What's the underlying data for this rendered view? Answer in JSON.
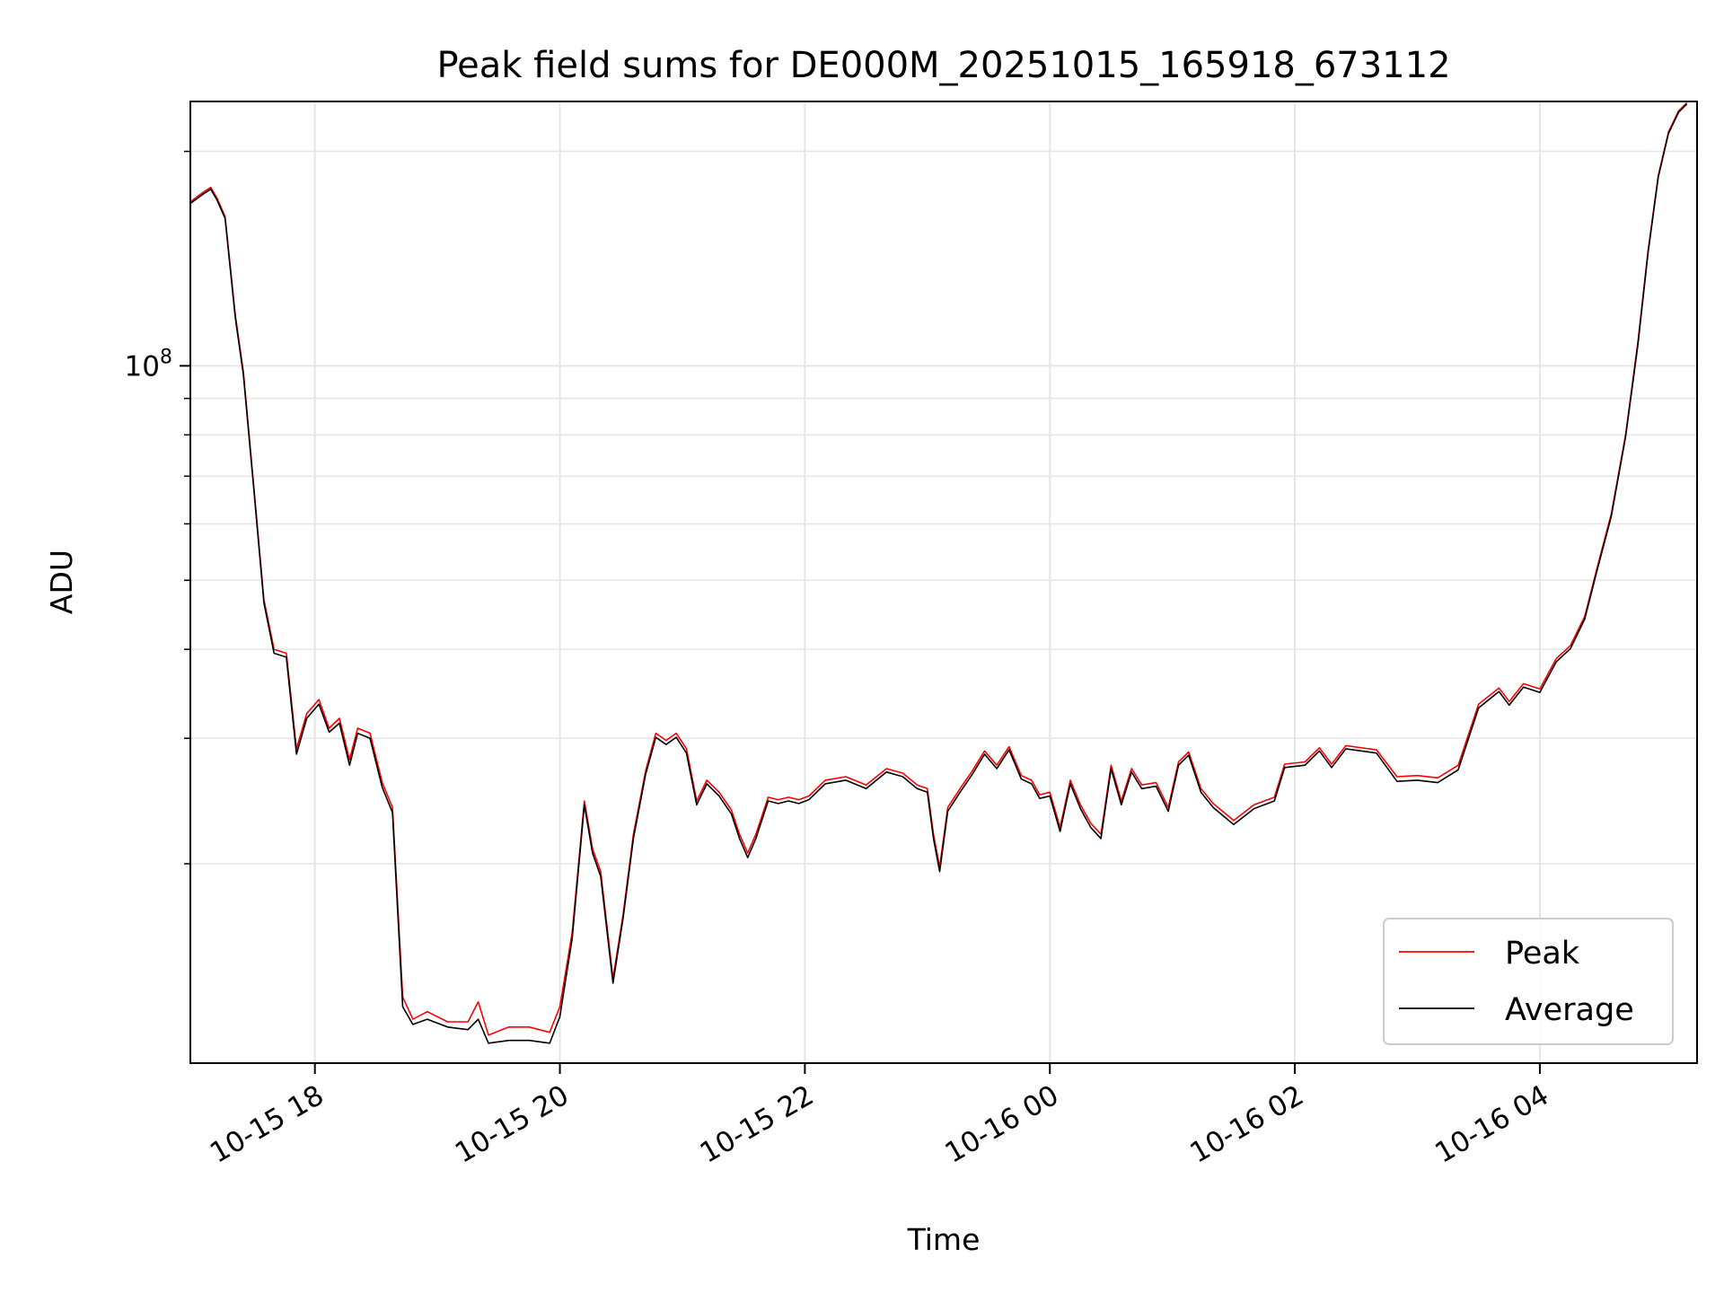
{
  "chart_data": {
    "type": "line",
    "title": "Peak field sums for DE000M_20251015_165918_673112",
    "xlabel": "Time",
    "ylabel": "ADU",
    "y_scale": "log",
    "y_tick_labels": [
      {
        "value": 100000000,
        "base": "10",
        "exponent": "8"
      }
    ],
    "ylim": [
      10500000,
      235000000
    ],
    "xlim": [
      "2025-10-15 16:59",
      "2025-10-16 05:17"
    ],
    "x_ticks": [
      {
        "time": "2025-10-15 18:00",
        "label": "10-15 18"
      },
      {
        "time": "2025-10-15 20:00",
        "label": "10-15 20"
      },
      {
        "time": "2025-10-15 22:00",
        "label": "10-15 22"
      },
      {
        "time": "2025-10-16 00:00",
        "label": "10-16 00"
      },
      {
        "time": "2025-10-16 02:00",
        "label": "10-16 02"
      },
      {
        "time": "2025-10-16 04:00",
        "label": "10-16 04"
      }
    ],
    "grid": true,
    "legend_position": "lower-right",
    "series": [
      {
        "name": "Peak",
        "color": "#ff0000",
        "points": [
          [
            "2025-10-15 16:59",
            170000000
          ],
          [
            "2025-10-15 17:05",
            175000000
          ],
          [
            "2025-10-15 17:09",
            178000000
          ],
          [
            "2025-10-15 17:12",
            172000000
          ],
          [
            "2025-10-15 17:16",
            162000000
          ],
          [
            "2025-10-15 17:21",
            118000000
          ],
          [
            "2025-10-15 17:25",
            98000000
          ],
          [
            "2025-10-15 17:30",
            68000000
          ],
          [
            "2025-10-15 17:35",
            47000000
          ],
          [
            "2025-10-15 17:40",
            40000000
          ],
          [
            "2025-10-15 17:46",
            39500000
          ],
          [
            "2025-10-15 17:51",
            29000000
          ],
          [
            "2025-10-15 17:56",
            32500000
          ],
          [
            "2025-10-15 18:02",
            34000000
          ],
          [
            "2025-10-15 18:07",
            31000000
          ],
          [
            "2025-10-15 18:12",
            32000000
          ],
          [
            "2025-10-15 18:17",
            28000000
          ],
          [
            "2025-10-15 18:21",
            31000000
          ],
          [
            "2025-10-15 18:27",
            30500000
          ],
          [
            "2025-10-15 18:33",
            26000000
          ],
          [
            "2025-10-15 18:38",
            24000000
          ],
          [
            "2025-10-15 18:43",
            13000000
          ],
          [
            "2025-10-15 18:48",
            12100000
          ],
          [
            "2025-10-15 18:55",
            12400000
          ],
          [
            "2025-10-15 19:05",
            12000000
          ],
          [
            "2025-10-15 19:15",
            12000000
          ],
          [
            "2025-10-15 19:20",
            12800000
          ],
          [
            "2025-10-15 19:25",
            11500000
          ],
          [
            "2025-10-15 19:35",
            11800000
          ],
          [
            "2025-10-15 19:45",
            11800000
          ],
          [
            "2025-10-15 19:55",
            11600000
          ],
          [
            "2025-10-15 20:00",
            12600000
          ],
          [
            "2025-10-15 20:06",
            16000000
          ],
          [
            "2025-10-15 20:12",
            24500000
          ],
          [
            "2025-10-15 20:16",
            21000000
          ],
          [
            "2025-10-15 20:20",
            19500000
          ],
          [
            "2025-10-15 20:26",
            13800000
          ],
          [
            "2025-10-15 20:31",
            17000000
          ],
          [
            "2025-10-15 20:36",
            22000000
          ],
          [
            "2025-10-15 20:42",
            27000000
          ],
          [
            "2025-10-15 20:47",
            30500000
          ],
          [
            "2025-10-15 20:52",
            29800000
          ],
          [
            "2025-10-15 20:57",
            30500000
          ],
          [
            "2025-10-15 21:02",
            29000000
          ],
          [
            "2025-10-15 21:07",
            24500000
          ],
          [
            "2025-10-15 21:12",
            26200000
          ],
          [
            "2025-10-15 21:18",
            25200000
          ],
          [
            "2025-10-15 21:24",
            23800000
          ],
          [
            "2025-10-15 21:28",
            22000000
          ],
          [
            "2025-10-15 21:32",
            20700000
          ],
          [
            "2025-10-15 21:36",
            22000000
          ],
          [
            "2025-10-15 21:42",
            24800000
          ],
          [
            "2025-10-15 21:47",
            24600000
          ],
          [
            "2025-10-15 21:52",
            24800000
          ],
          [
            "2025-10-15 21:57",
            24600000
          ],
          [
            "2025-10-15 22:02",
            24900000
          ],
          [
            "2025-10-15 22:10",
            26200000
          ],
          [
            "2025-10-15 22:20",
            26500000
          ],
          [
            "2025-10-15 22:30",
            25800000
          ],
          [
            "2025-10-15 22:40",
            27200000
          ],
          [
            "2025-10-15 22:48",
            26800000
          ],
          [
            "2025-10-15 22:55",
            25800000
          ],
          [
            "2025-10-15 23:00",
            25500000
          ],
          [
            "2025-10-15 23:03",
            22000000
          ],
          [
            "2025-10-15 23:06",
            19800000
          ],
          [
            "2025-10-15 23:10",
            24000000
          ],
          [
            "2025-10-15 23:16",
            25500000
          ],
          [
            "2025-10-15 23:22",
            27000000
          ],
          [
            "2025-10-15 23:28",
            28800000
          ],
          [
            "2025-10-15 23:34",
            27500000
          ],
          [
            "2025-10-15 23:40",
            29200000
          ],
          [
            "2025-10-15 23:46",
            26600000
          ],
          [
            "2025-10-15 23:51",
            26200000
          ],
          [
            "2025-10-15 23:55",
            25000000
          ],
          [
            "2025-10-16 00:00",
            25200000
          ],
          [
            "2025-10-16 00:05",
            22500000
          ],
          [
            "2025-10-16 00:10",
            26200000
          ],
          [
            "2025-10-16 00:15",
            24200000
          ],
          [
            "2025-10-16 00:20",
            22800000
          ],
          [
            "2025-10-16 00:25",
            22000000
          ],
          [
            "2025-10-16 00:30",
            27500000
          ],
          [
            "2025-10-16 00:35",
            24500000
          ],
          [
            "2025-10-16 00:40",
            27200000
          ],
          [
            "2025-10-16 00:45",
            25800000
          ],
          [
            "2025-10-16 00:52",
            26000000
          ],
          [
            "2025-10-16 00:58",
            24000000
          ],
          [
            "2025-10-16 01:03",
            27800000
          ],
          [
            "2025-10-16 01:08",
            28700000
          ],
          [
            "2025-10-16 01:14",
            25500000
          ],
          [
            "2025-10-16 01:20",
            24300000
          ],
          [
            "2025-10-16 01:30",
            23000000
          ],
          [
            "2025-10-16 01:40",
            24200000
          ],
          [
            "2025-10-16 01:50",
            24800000
          ],
          [
            "2025-10-16 01:55",
            27600000
          ],
          [
            "2025-10-16 02:05",
            27800000
          ],
          [
            "2025-10-16 02:12",
            29100000
          ],
          [
            "2025-10-16 02:18",
            27600000
          ],
          [
            "2025-10-16 02:25",
            29300000
          ],
          [
            "2025-10-16 02:40",
            28900000
          ],
          [
            "2025-10-16 02:50",
            26500000
          ],
          [
            "2025-10-16 03:00",
            26600000
          ],
          [
            "2025-10-16 03:10",
            26400000
          ],
          [
            "2025-10-16 03:20",
            27500000
          ],
          [
            "2025-10-16 03:30",
            33500000
          ],
          [
            "2025-10-16 03:40",
            35300000
          ],
          [
            "2025-10-16 03:45",
            33800000
          ],
          [
            "2025-10-16 03:52",
            35800000
          ],
          [
            "2025-10-16 04:00",
            35200000
          ],
          [
            "2025-10-16 04:08",
            38800000
          ],
          [
            "2025-10-16 04:15",
            40500000
          ],
          [
            "2025-10-16 04:22",
            44500000
          ],
          [
            "2025-10-16 04:28",
            52000000
          ],
          [
            "2025-10-16 04:35",
            62000000
          ],
          [
            "2025-10-16 04:42",
            80000000
          ],
          [
            "2025-10-16 04:48",
            108000000
          ],
          [
            "2025-10-16 04:53",
            145000000
          ],
          [
            "2025-10-16 04:58",
            185000000
          ],
          [
            "2025-10-16 05:03",
            213000000
          ],
          [
            "2025-10-16 05:08",
            228000000
          ],
          [
            "2025-10-16 05:12",
            234000000
          ]
        ]
      },
      {
        "name": "Average",
        "color": "#000000",
        "points": [
          [
            "2025-10-15 16:59",
            169000000
          ],
          [
            "2025-10-15 17:05",
            174000000
          ],
          [
            "2025-10-15 17:09",
            177000000
          ],
          [
            "2025-10-15 17:12",
            171000000
          ],
          [
            "2025-10-15 17:16",
            161000000
          ],
          [
            "2025-10-15 17:21",
            117000000
          ],
          [
            "2025-10-15 17:25",
            97000000
          ],
          [
            "2025-10-15 17:30",
            67500000
          ],
          [
            "2025-10-15 17:35",
            46500000
          ],
          [
            "2025-10-15 17:40",
            39500000
          ],
          [
            "2025-10-15 17:46",
            39000000
          ],
          [
            "2025-10-15 17:51",
            28500000
          ],
          [
            "2025-10-15 17:56",
            32000000
          ],
          [
            "2025-10-15 18:02",
            33500000
          ],
          [
            "2025-10-15 18:07",
            30600000
          ],
          [
            "2025-10-15 18:12",
            31500000
          ],
          [
            "2025-10-15 18:17",
            27500000
          ],
          [
            "2025-10-15 18:21",
            30500000
          ],
          [
            "2025-10-15 18:27",
            30000000
          ],
          [
            "2025-10-15 18:33",
            25600000
          ],
          [
            "2025-10-15 18:38",
            23600000
          ],
          [
            "2025-10-15 18:43",
            12600000
          ],
          [
            "2025-10-15 18:48",
            11900000
          ],
          [
            "2025-10-15 18:55",
            12100000
          ],
          [
            "2025-10-15 19:05",
            11800000
          ],
          [
            "2025-10-15 19:15",
            11700000
          ],
          [
            "2025-10-15 19:20",
            12100000
          ],
          [
            "2025-10-15 19:25",
            11200000
          ],
          [
            "2025-10-15 19:35",
            11300000
          ],
          [
            "2025-10-15 19:45",
            11300000
          ],
          [
            "2025-10-15 19:55",
            11200000
          ],
          [
            "2025-10-15 20:00",
            12200000
          ],
          [
            "2025-10-15 20:06",
            15700000
          ],
          [
            "2025-10-15 20:12",
            24200000
          ],
          [
            "2025-10-15 20:16",
            20700000
          ],
          [
            "2025-10-15 20:20",
            19200000
          ],
          [
            "2025-10-15 20:26",
            13600000
          ],
          [
            "2025-10-15 20:31",
            16800000
          ],
          [
            "2025-10-15 20:36",
            21700000
          ],
          [
            "2025-10-15 20:42",
            26700000
          ],
          [
            "2025-10-15 20:47",
            30100000
          ],
          [
            "2025-10-15 20:52",
            29400000
          ],
          [
            "2025-10-15 20:57",
            30100000
          ],
          [
            "2025-10-15 21:02",
            28600000
          ],
          [
            "2025-10-15 21:07",
            24200000
          ],
          [
            "2025-10-15 21:12",
            25900000
          ],
          [
            "2025-10-15 21:18",
            24900000
          ],
          [
            "2025-10-15 21:24",
            23500000
          ],
          [
            "2025-10-15 21:28",
            21700000
          ],
          [
            "2025-10-15 21:32",
            20400000
          ],
          [
            "2025-10-15 21:36",
            21700000
          ],
          [
            "2025-10-15 21:42",
            24500000
          ],
          [
            "2025-10-15 21:47",
            24300000
          ],
          [
            "2025-10-15 21:52",
            24500000
          ],
          [
            "2025-10-15 21:57",
            24300000
          ],
          [
            "2025-10-15 22:02",
            24600000
          ],
          [
            "2025-10-15 22:10",
            25900000
          ],
          [
            "2025-10-15 22:20",
            26200000
          ],
          [
            "2025-10-15 22:30",
            25500000
          ],
          [
            "2025-10-15 22:40",
            26900000
          ],
          [
            "2025-10-15 22:48",
            26500000
          ],
          [
            "2025-10-15 22:55",
            25500000
          ],
          [
            "2025-10-15 23:00",
            25200000
          ],
          [
            "2025-10-15 23:03",
            21700000
          ],
          [
            "2025-10-15 23:06",
            19500000
          ],
          [
            "2025-10-15 23:10",
            23700000
          ],
          [
            "2025-10-15 23:16",
            25200000
          ],
          [
            "2025-10-15 23:22",
            26700000
          ],
          [
            "2025-10-15 23:28",
            28500000
          ],
          [
            "2025-10-15 23:34",
            27200000
          ],
          [
            "2025-10-15 23:40",
            28900000
          ],
          [
            "2025-10-15 23:46",
            26300000
          ],
          [
            "2025-10-15 23:51",
            25900000
          ],
          [
            "2025-10-15 23:55",
            24700000
          ],
          [
            "2025-10-16 00:00",
            24900000
          ],
          [
            "2025-10-16 00:05",
            22200000
          ],
          [
            "2025-10-16 00:10",
            25900000
          ],
          [
            "2025-10-16 00:15",
            23900000
          ],
          [
            "2025-10-16 00:20",
            22500000
          ],
          [
            "2025-10-16 00:25",
            21700000
          ],
          [
            "2025-10-16 00:30",
            27200000
          ],
          [
            "2025-10-16 00:35",
            24200000
          ],
          [
            "2025-10-16 00:40",
            26900000
          ],
          [
            "2025-10-16 00:45",
            25500000
          ],
          [
            "2025-10-16 00:52",
            25700000
          ],
          [
            "2025-10-16 00:58",
            23700000
          ],
          [
            "2025-10-16 01:03",
            27500000
          ],
          [
            "2025-10-16 01:08",
            28400000
          ],
          [
            "2025-10-16 01:14",
            25200000
          ],
          [
            "2025-10-16 01:20",
            24000000
          ],
          [
            "2025-10-16 01:30",
            22700000
          ],
          [
            "2025-10-16 01:40",
            23900000
          ],
          [
            "2025-10-16 01:50",
            24500000
          ],
          [
            "2025-10-16 01:55",
            27300000
          ],
          [
            "2025-10-16 02:05",
            27500000
          ],
          [
            "2025-10-16 02:12",
            28800000
          ],
          [
            "2025-10-16 02:18",
            27300000
          ],
          [
            "2025-10-16 02:25",
            29000000
          ],
          [
            "2025-10-16 02:40",
            28600000
          ],
          [
            "2025-10-16 02:50",
            26100000
          ],
          [
            "2025-10-16 03:00",
            26200000
          ],
          [
            "2025-10-16 03:10",
            26000000
          ],
          [
            "2025-10-16 03:20",
            27100000
          ],
          [
            "2025-10-16 03:30",
            33100000
          ],
          [
            "2025-10-16 03:40",
            34900000
          ],
          [
            "2025-10-16 03:45",
            33400000
          ],
          [
            "2025-10-16 03:52",
            35400000
          ],
          [
            "2025-10-16 04:00",
            34800000
          ],
          [
            "2025-10-16 04:08",
            38400000
          ],
          [
            "2025-10-16 04:15",
            40100000
          ],
          [
            "2025-10-16 04:22",
            44100000
          ],
          [
            "2025-10-16 04:28",
            51600000
          ],
          [
            "2025-10-16 04:35",
            61500000
          ],
          [
            "2025-10-16 04:42",
            79500000
          ],
          [
            "2025-10-16 04:48",
            107000000
          ],
          [
            "2025-10-16 04:53",
            144000000
          ],
          [
            "2025-10-16 04:58",
            184000000
          ],
          [
            "2025-10-16 05:03",
            212000000
          ],
          [
            "2025-10-16 05:08",
            227000000
          ],
          [
            "2025-10-16 05:12",
            233000000
          ]
        ]
      }
    ]
  }
}
